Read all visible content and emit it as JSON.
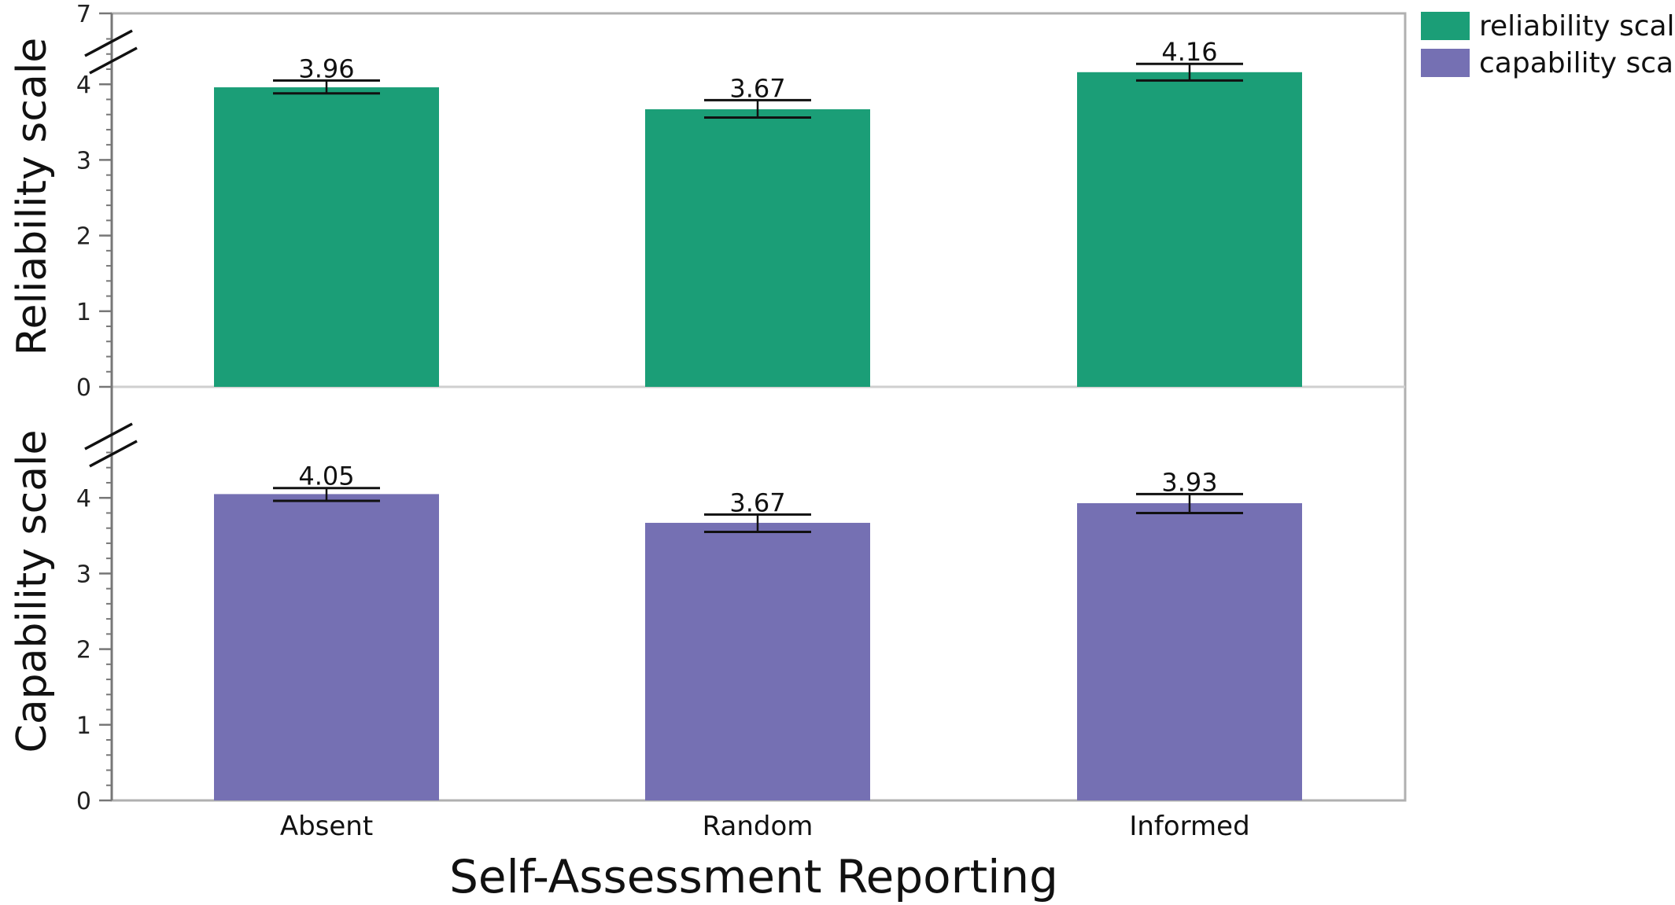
{
  "chart_data": {
    "type": "bar",
    "xlabel": "Self-Assessment Reporting",
    "categories": [
      "Absent",
      "Random",
      "Informed"
    ],
    "panels": [
      {
        "ylabel": "Reliability scale",
        "series_name": "reliability scale",
        "color": "#1b9e77",
        "values": [
          3.96,
          3.67,
          4.16
        ],
        "labels": [
          "3.96",
          "3.67",
          "4.16"
        ],
        "error_low": [
          3.88,
          3.56,
          4.05
        ],
        "error_high": [
          4.05,
          3.79,
          4.27
        ],
        "ylim": [
          0,
          7
        ],
        "axis_break": true,
        "ticks": [
          {
            "value": 0,
            "label": "0"
          },
          {
            "value": 1,
            "label": "1"
          },
          {
            "value": 2,
            "label": "2"
          },
          {
            "value": 3,
            "label": "3"
          },
          {
            "value": 4,
            "label": "4"
          },
          {
            "value": 7,
            "label": "7"
          }
        ]
      },
      {
        "ylabel": "Capability scale",
        "series_name": "capability scale",
        "color": "#7570b3",
        "values": [
          4.05,
          3.67,
          3.93
        ],
        "labels": [
          "4.05",
          "3.67",
          "3.93"
        ],
        "error_low": [
          3.96,
          3.55,
          3.8
        ],
        "error_high": [
          4.13,
          3.78,
          4.05
        ],
        "axis_break": true,
        "ticks": [
          {
            "value": 0,
            "label": "0"
          },
          {
            "value": 1,
            "label": "1"
          },
          {
            "value": 2,
            "label": "2"
          },
          {
            "value": 3,
            "label": "3"
          },
          {
            "value": 4,
            "label": "4"
          }
        ]
      }
    ],
    "legend": {
      "position": "top-right",
      "entries": [
        {
          "label": "reliability scale",
          "color": "#1b9e77"
        },
        {
          "label": "capability scale",
          "color": "#7570b3"
        }
      ]
    }
  }
}
